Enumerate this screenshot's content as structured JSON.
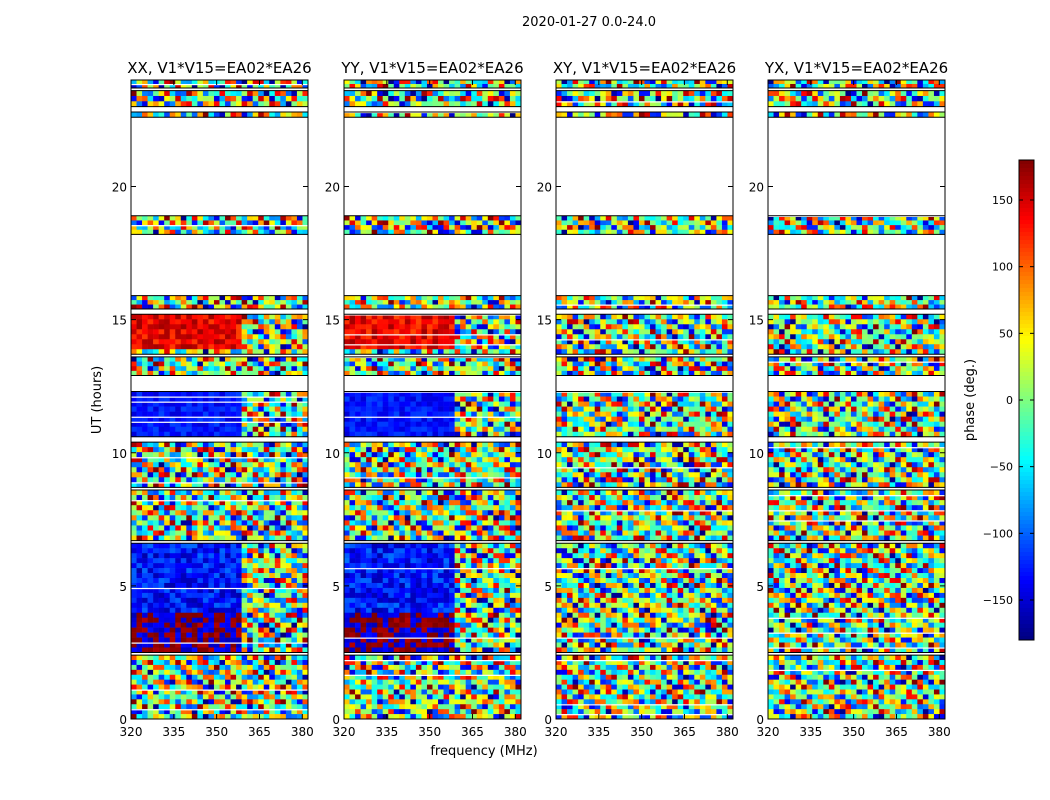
{
  "figure_title": "2020-01-27 0.0-24.0",
  "chart_data": {
    "type": "heatmap",
    "suptitle": "2020-01-27 0.0-24.0",
    "xlabel": "frequency (MHz)",
    "ylabel": "UT (hours)",
    "xlim": [
      320,
      382
    ],
    "ylim": [
      0,
      24
    ],
    "xticks": [
      320,
      335,
      350,
      365,
      380
    ],
    "yticks": [
      0,
      5,
      10,
      15,
      20
    ],
    "panels": [
      {
        "title": "XX, V1*V15=EA02*EA26",
        "pol": "XX"
      },
      {
        "title": "YY, V1*V15=EA02*EA26",
        "pol": "YY"
      },
      {
        "title": "XY, V1*V15=EA02*EA26",
        "pol": "XY"
      },
      {
        "title": "YX, V1*V15=EA02*EA26",
        "pol": "YX"
      }
    ],
    "data_blocks_hours": [
      [
        0.0,
        2.4
      ],
      [
        2.5,
        6.6
      ],
      [
        6.7,
        8.6
      ],
      [
        8.7,
        10.4
      ],
      [
        10.6,
        12.3
      ],
      [
        12.9,
        13.6
      ],
      [
        13.7,
        15.2
      ],
      [
        15.4,
        15.9
      ],
      [
        18.2,
        18.9
      ],
      [
        22.6,
        22.8
      ],
      [
        23.0,
        23.6
      ],
      [
        23.7,
        24.0
      ]
    ],
    "colorbar": {
      "label": "phase (deg.)",
      "range": [
        -180,
        180
      ],
      "ticks": [
        150,
        100,
        50,
        0,
        -50,
        -100,
        -150
      ],
      "tick_labels": [
        "150",
        "100",
        "50",
        "0",
        "−50",
        "−100",
        "−150"
      ],
      "colormap": [
        "#00007f",
        "#0000ff",
        "#007fff",
        "#00ffff",
        "#7fff7f",
        "#ffff00",
        "#ff7f00",
        "#ff0000",
        "#7f0000"
      ]
    }
  }
}
